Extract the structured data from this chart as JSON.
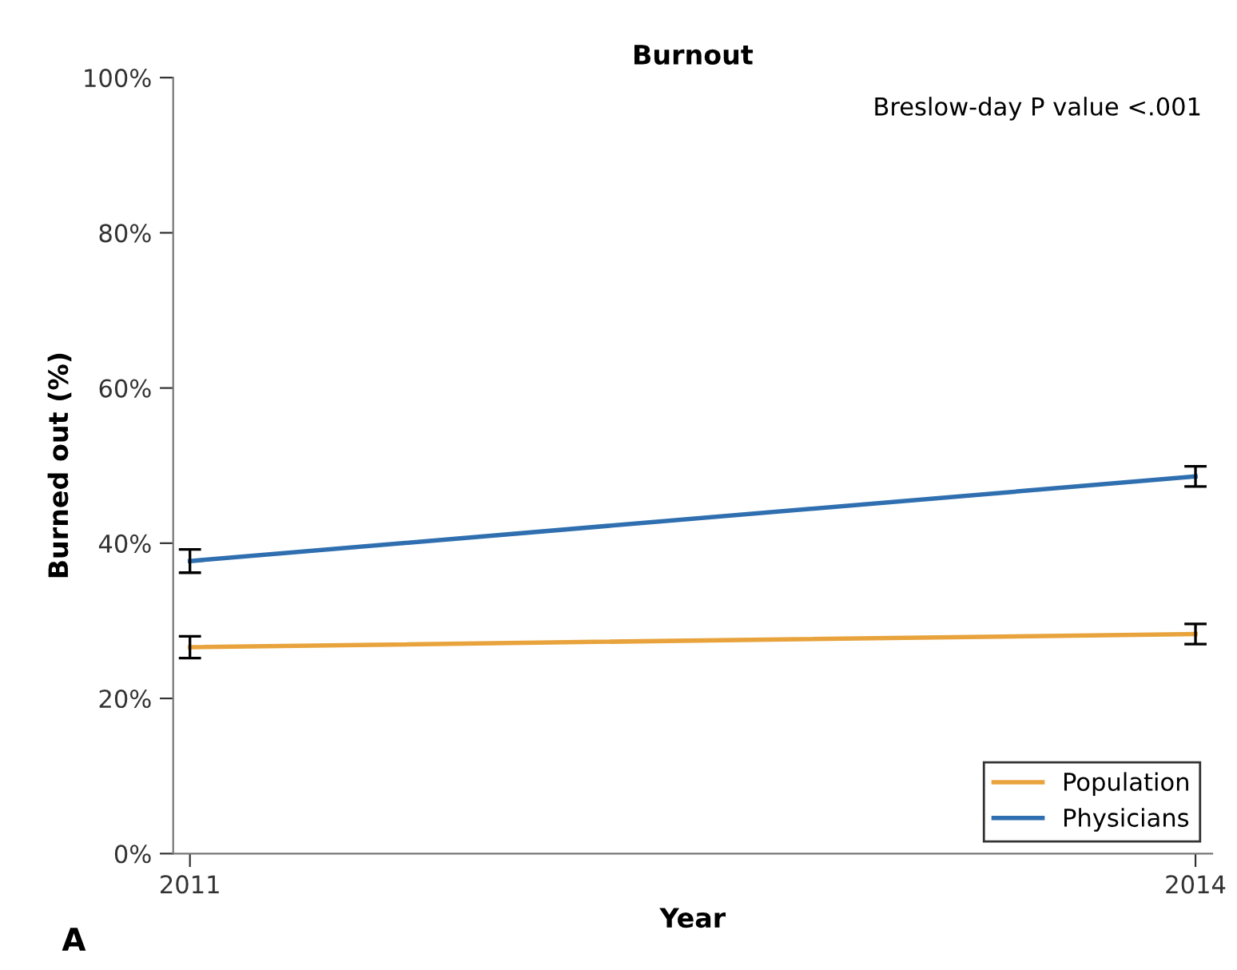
{
  "chart_data": {
    "type": "line",
    "title": "Burnout",
    "xlabel": "Year",
    "ylabel": "Burned out (%)",
    "x": [
      2011,
      2014
    ],
    "series": [
      {
        "name": "Population",
        "color": "#e8a33d",
        "values": [
          26.6,
          28.3
        ],
        "errors": [
          1.4,
          1.3
        ]
      },
      {
        "name": "Physicians",
        "color": "#2f6fb0",
        "values": [
          37.7,
          48.6
        ],
        "errors": [
          1.5,
          1.3
        ]
      }
    ],
    "xlim": [
      2010.95,
      2014.05
    ],
    "xticks": [
      2011,
      2014
    ],
    "ylim": [
      0,
      100
    ],
    "yticks": [
      {
        "value": 0,
        "label": "0%"
      },
      {
        "value": 20,
        "label": "20%"
      },
      {
        "value": 40,
        "label": "40%"
      },
      {
        "value": 60,
        "label": "60%"
      },
      {
        "value": 80,
        "label": "80%"
      },
      {
        "value": 100,
        "label": "100%"
      }
    ],
    "annotations": [
      "Breslow-day P value <.001",
      "A"
    ],
    "legend": "bottom right",
    "grid": false,
    "marker": "none",
    "line_style": "solid"
  }
}
